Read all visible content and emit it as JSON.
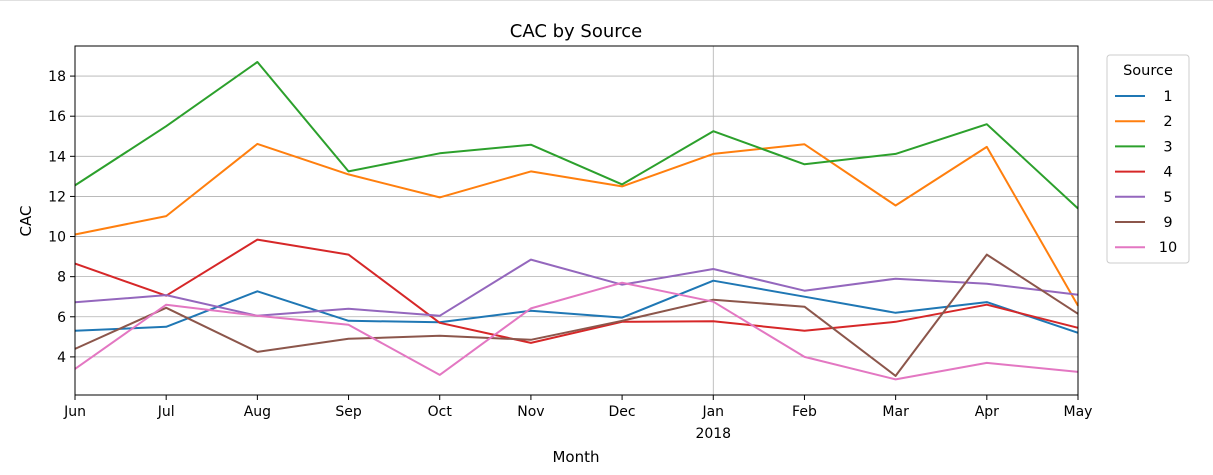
{
  "chart_data": {
    "type": "line",
    "title": "CAC by Source",
    "xlabel": "Month",
    "ylabel": "CAC",
    "x": [
      "Jun",
      "Jul",
      "Aug",
      "Sep",
      "Oct",
      "Nov",
      "Dec",
      "Jan",
      "Feb",
      "Mar",
      "Apr",
      "May"
    ],
    "x_sublabels": [
      "",
      "",
      "",
      "",
      "",
      "",
      "",
      "2018",
      "",
      "",
      "",
      ""
    ],
    "yticks": [
      4,
      6,
      8,
      10,
      12,
      14,
      16,
      18
    ],
    "ylim": [
      2.1,
      19.5
    ],
    "grid": true,
    "legend": {
      "title": "Source",
      "placement": "outside-right"
    },
    "series": [
      {
        "name": "1",
        "color": "#1f77b4",
        "values": [
          5.3,
          5.5,
          7.27,
          5.8,
          5.73,
          6.3,
          5.96,
          7.8,
          7.0,
          6.2,
          6.73,
          5.2
        ]
      },
      {
        "name": "2",
        "color": "#ff7f0e",
        "values": [
          10.1,
          11.02,
          14.62,
          13.1,
          11.95,
          13.25,
          12.5,
          14.12,
          14.6,
          11.55,
          14.47,
          6.55
        ]
      },
      {
        "name": "3",
        "color": "#2ca02c",
        "values": [
          12.55,
          15.5,
          18.7,
          13.25,
          14.15,
          14.58,
          12.6,
          15.25,
          13.6,
          14.12,
          15.6,
          11.4
        ]
      },
      {
        "name": "4",
        "color": "#d62728",
        "values": [
          8.65,
          7.05,
          9.85,
          9.1,
          5.7,
          4.7,
          5.75,
          5.78,
          5.3,
          5.75,
          6.6,
          5.45
        ]
      },
      {
        "name": "5",
        "color": "#9467bd",
        "values": [
          6.72,
          7.08,
          6.05,
          6.4,
          6.05,
          8.85,
          7.6,
          8.38,
          7.3,
          7.9,
          7.65,
          7.1
        ]
      },
      {
        "name": "9",
        "color": "#8c564b",
        "values": [
          4.4,
          6.45,
          4.25,
          4.9,
          5.05,
          4.85,
          5.8,
          6.85,
          6.5,
          3.05,
          9.1,
          6.15
        ]
      },
      {
        "name": "10",
        "color": "#e377c2",
        "values": [
          3.4,
          6.6,
          6.05,
          5.6,
          3.1,
          6.42,
          7.7,
          6.75,
          4.0,
          2.88,
          3.7,
          3.25
        ]
      }
    ]
  }
}
